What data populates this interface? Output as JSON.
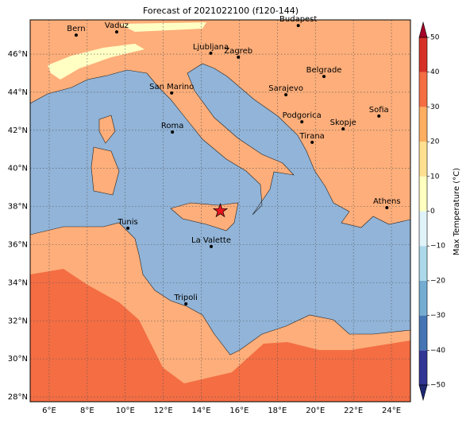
{
  "title": "Forecast of 2021022100 (f120-144)",
  "map": {
    "lon_range": [
      5,
      25
    ],
    "lat_range": [
      27.75,
      47.8
    ],
    "lon_ticks": [
      {
        "value": 6,
        "label": "6°E"
      },
      {
        "value": 8,
        "label": "8°E"
      },
      {
        "value": 10,
        "label": "10°E"
      },
      {
        "value": 12,
        "label": "12°E"
      },
      {
        "value": 14,
        "label": "14°E"
      },
      {
        "value": 16,
        "label": "16°E"
      },
      {
        "value": 18,
        "label": "18°E"
      },
      {
        "value": 20,
        "label": "20°E"
      },
      {
        "value": 22,
        "label": "22°E"
      },
      {
        "value": 24,
        "label": "24°E"
      }
    ],
    "lat_ticks": [
      {
        "value": 28,
        "label": "28°N"
      },
      {
        "value": 30,
        "label": "30°N"
      },
      {
        "value": 32,
        "label": "32°N"
      },
      {
        "value": 34,
        "label": "34°N"
      },
      {
        "value": 36,
        "label": "36°N"
      },
      {
        "value": 38,
        "label": "38°N"
      },
      {
        "value": 40,
        "label": "40°N"
      },
      {
        "value": 42,
        "label": "42°N"
      },
      {
        "value": 44,
        "label": "44°N"
      },
      {
        "value": 46,
        "label": "46°N"
      }
    ],
    "cities": [
      {
        "name": "Bern",
        "lon": 7.42,
        "lat": 47.0
      },
      {
        "name": "Vaduz",
        "lon": 9.55,
        "lat": 47.17
      },
      {
        "name": "Budapest",
        "lon": 19.1,
        "lat": 47.5
      },
      {
        "name": "Ljubljana",
        "lon": 14.5,
        "lat": 46.05
      },
      {
        "name": "Zagreb",
        "lon": 15.95,
        "lat": 45.84
      },
      {
        "name": "Belgrade",
        "lon": 20.45,
        "lat": 44.83
      },
      {
        "name": "San Marino",
        "lon": 12.44,
        "lat": 43.96
      },
      {
        "name": "Sarajevo",
        "lon": 18.45,
        "lat": 43.87
      },
      {
        "name": "Sofia",
        "lon": 23.34,
        "lat": 42.75
      },
      {
        "name": "Roma",
        "lon": 12.48,
        "lat": 41.91
      },
      {
        "name": "Podgorica",
        "lon": 19.29,
        "lat": 42.45
      },
      {
        "name": "Skopje",
        "lon": 21.46,
        "lat": 42.08
      },
      {
        "name": "Tirana",
        "lon": 19.83,
        "lat": 41.37
      },
      {
        "name": "Athens",
        "lon": 23.76,
        "lat": 37.94
      },
      {
        "name": "Tunis",
        "lon": 10.14,
        "lat": 36.86
      },
      {
        "name": "La Valette",
        "lon": 14.52,
        "lat": 35.9
      },
      {
        "name": "Tripoli",
        "lon": 13.19,
        "lat": 32.89
      }
    ],
    "star": {
      "lon": 15.0,
      "lat": 37.77
    }
  },
  "colorbar": {
    "label": "Max Temperature (°C)",
    "range": [
      -50,
      50
    ],
    "ticks": [
      {
        "value": 50,
        "label": "50"
      },
      {
        "value": 40,
        "label": "40"
      },
      {
        "value": 30,
        "label": "30"
      },
      {
        "value": 20,
        "label": "20"
      },
      {
        "value": 10,
        "label": "10"
      },
      {
        "value": 0,
        "label": "0"
      },
      {
        "value": -10,
        "label": "−10"
      },
      {
        "value": -20,
        "label": "−20"
      },
      {
        "value": -30,
        "label": "−30"
      },
      {
        "value": -40,
        "label": "−40"
      },
      {
        "value": -50,
        "label": "−50"
      }
    ],
    "levels": [
      -50,
      -40,
      -30,
      -20,
      -10,
      0,
      10,
      20,
      30,
      40,
      50
    ],
    "colors": [
      "#313695",
      "#4575b4",
      "#74add1",
      "#abd9e9",
      "#e0f3f8",
      "#ffffbf",
      "#fee090",
      "#fdae61",
      "#f46d43",
      "#d73027"
    ],
    "under_color": "#1e2872",
    "over_color": "#a50026"
  }
}
